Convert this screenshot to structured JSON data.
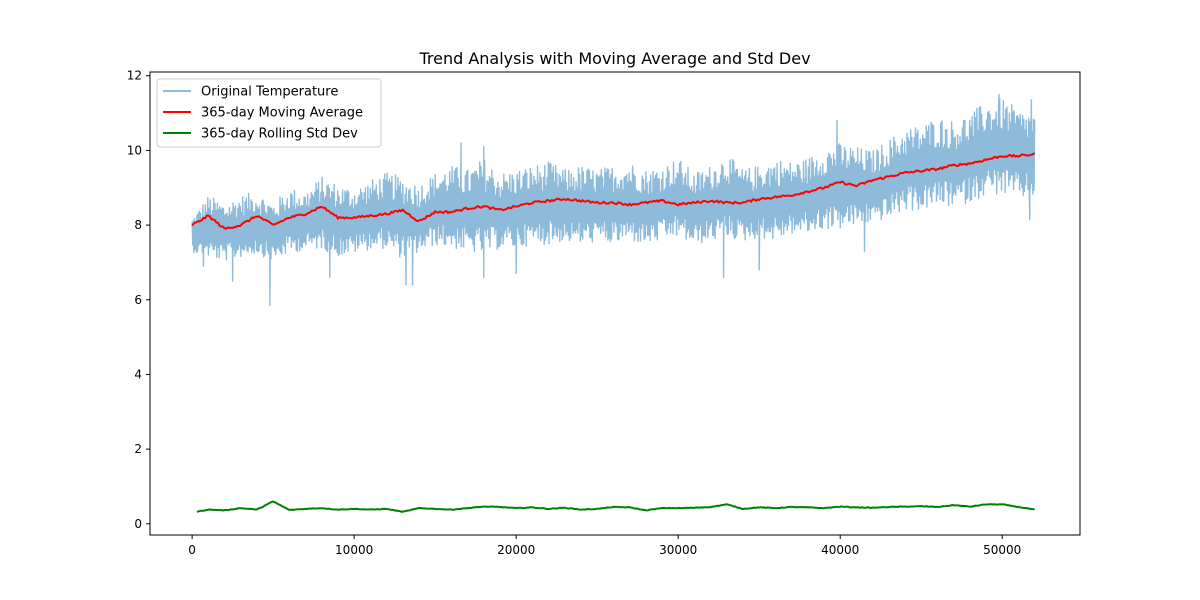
{
  "chart_data": {
    "type": "line",
    "title": "Trend Analysis with Moving Average and Std Dev",
    "xlabel": "",
    "ylabel": "",
    "xlim": [
      -2600,
      54800
    ],
    "ylim": [
      -0.3,
      12.1
    ],
    "x_ticks": [
      0,
      10000,
      20000,
      30000,
      40000,
      50000
    ],
    "x_tick_labels": [
      "0",
      "10000",
      "20000",
      "30000",
      "40000",
      "50000"
    ],
    "y_ticks": [
      0,
      2,
      4,
      6,
      8,
      10,
      12
    ],
    "y_tick_labels": [
      "0",
      "2",
      "4",
      "6",
      "8",
      "10",
      "12"
    ],
    "grid": false,
    "legend_position": "upper-left",
    "series": [
      {
        "name": "Original Temperature",
        "color": "#8fbbdb",
        "style": "noisy-band",
        "x": [
          0,
          1000,
          2000,
          3000,
          4000,
          5000,
          6000,
          7000,
          8000,
          9000,
          10000,
          11000,
          12000,
          13000,
          14000,
          15000,
          16000,
          17000,
          18000,
          19000,
          20000,
          21000,
          22000,
          23000,
          24000,
          25000,
          26000,
          27000,
          28000,
          29000,
          30000,
          31000,
          32000,
          33000,
          34000,
          35000,
          36000,
          37000,
          38000,
          39000,
          40000,
          41000,
          42000,
          43000,
          44000,
          45000,
          46000,
          47000,
          48000,
          49000,
          50000,
          51000,
          52000
        ],
        "upper": [
          8.2,
          8.8,
          8.6,
          8.8,
          8.9,
          8.6,
          9.0,
          8.9,
          9.3,
          9.1,
          9.0,
          9.2,
          9.4,
          9.3,
          9.1,
          9.4,
          9.6,
          9.5,
          9.8,
          9.4,
          9.5,
          9.6,
          9.7,
          9.5,
          9.6,
          9.5,
          9.6,
          9.7,
          9.5,
          9.6,
          9.8,
          9.4,
          9.6,
          9.9,
          9.5,
          9.6,
          9.8,
          9.7,
          9.8,
          10.1,
          10.2,
          10.1,
          10.0,
          10.3,
          10.6,
          10.7,
          10.9,
          10.8,
          11.0,
          11.3,
          11.4,
          11.1,
          11.0
        ],
        "lower": [
          7.2,
          7.0,
          6.9,
          7.0,
          7.1,
          6.9,
          7.1,
          7.2,
          7.2,
          7.0,
          7.1,
          7.2,
          7.2,
          6.9,
          7.1,
          7.3,
          7.2,
          7.1,
          7.0,
          7.2,
          7.2,
          7.3,
          7.3,
          7.4,
          7.3,
          7.4,
          7.3,
          7.4,
          7.3,
          7.4,
          7.5,
          7.3,
          7.4,
          7.5,
          7.4,
          7.5,
          7.4,
          7.6,
          7.6,
          7.7,
          7.7,
          7.8,
          7.9,
          8.0,
          8.2,
          8.2,
          8.3,
          8.3,
          8.4,
          8.6,
          8.6,
          8.5,
          8.6
        ],
        "dips": [
          {
            "x": 700,
            "y": 6.9
          },
          {
            "x": 2500,
            "y": 6.5
          },
          {
            "x": 4800,
            "y": 5.85
          },
          {
            "x": 8500,
            "y": 6.6
          },
          {
            "x": 13200,
            "y": 6.4
          },
          {
            "x": 13600,
            "y": 6.4
          },
          {
            "x": 18000,
            "y": 6.6
          },
          {
            "x": 20000,
            "y": 6.7
          },
          {
            "x": 32800,
            "y": 6.6
          },
          {
            "x": 35000,
            "y": 6.8
          },
          {
            "x": 41500,
            "y": 7.3
          },
          {
            "x": 51700,
            "y": 8.15
          }
        ],
        "spikes": [
          {
            "x": 16600,
            "y": 10.2
          },
          {
            "x": 18000,
            "y": 10.1
          },
          {
            "x": 39800,
            "y": 10.8
          },
          {
            "x": 49800,
            "y": 11.5
          },
          {
            "x": 51800,
            "y": 11.35
          }
        ]
      },
      {
        "name": "365-day Moving Average",
        "color": "#ff0000",
        "style": "wavy-line",
        "x": [
          0,
          1000,
          2000,
          3000,
          4000,
          5000,
          6000,
          7000,
          8000,
          9000,
          10000,
          11000,
          12000,
          13000,
          14000,
          15000,
          16000,
          17000,
          18000,
          19000,
          20000,
          21000,
          22000,
          23000,
          24000,
          25000,
          26000,
          27000,
          28000,
          29000,
          30000,
          31000,
          32000,
          33000,
          34000,
          35000,
          36000,
          37000,
          38000,
          39000,
          40000,
          41000,
          42000,
          43000,
          44000,
          45000,
          46000,
          47000,
          48000,
          49000,
          50000,
          51000,
          52000
        ],
        "values": [
          8.0,
          8.25,
          7.9,
          8.0,
          8.25,
          8.0,
          8.2,
          8.3,
          8.5,
          8.2,
          8.2,
          8.25,
          8.3,
          8.4,
          8.1,
          8.35,
          8.35,
          8.45,
          8.5,
          8.4,
          8.5,
          8.6,
          8.65,
          8.7,
          8.65,
          8.6,
          8.6,
          8.55,
          8.6,
          8.65,
          8.55,
          8.6,
          8.65,
          8.6,
          8.6,
          8.7,
          8.75,
          8.8,
          8.9,
          9.0,
          9.15,
          9.05,
          9.2,
          9.3,
          9.4,
          9.45,
          9.5,
          9.6,
          9.65,
          9.75,
          9.85,
          9.85,
          9.9
        ]
      },
      {
        "name": "365-day Rolling Std Dev",
        "color": "#008000",
        "style": "wavy-line",
        "x": [
          0,
          1000,
          2000,
          3000,
          4000,
          5000,
          6000,
          7000,
          8000,
          9000,
          10000,
          11000,
          12000,
          13000,
          14000,
          15000,
          16000,
          17000,
          18000,
          19000,
          20000,
          21000,
          22000,
          23000,
          24000,
          25000,
          26000,
          27000,
          28000,
          29000,
          30000,
          31000,
          32000,
          33000,
          34000,
          35000,
          36000,
          37000,
          38000,
          39000,
          40000,
          41000,
          42000,
          43000,
          44000,
          45000,
          46000,
          47000,
          48000,
          49000,
          50000,
          51000,
          52000
        ],
        "values": [
          0.3,
          0.38,
          0.36,
          0.42,
          0.38,
          0.6,
          0.37,
          0.4,
          0.42,
          0.38,
          0.4,
          0.38,
          0.4,
          0.32,
          0.42,
          0.4,
          0.38,
          0.42,
          0.46,
          0.45,
          0.42,
          0.44,
          0.4,
          0.43,
          0.38,
          0.4,
          0.45,
          0.44,
          0.36,
          0.42,
          0.42,
          0.43,
          0.45,
          0.52,
          0.4,
          0.44,
          0.42,
          0.45,
          0.44,
          0.42,
          0.46,
          0.44,
          0.43,
          0.45,
          0.46,
          0.47,
          0.45,
          0.5,
          0.46,
          0.52,
          0.52,
          0.45,
          0.38
        ]
      }
    ]
  }
}
